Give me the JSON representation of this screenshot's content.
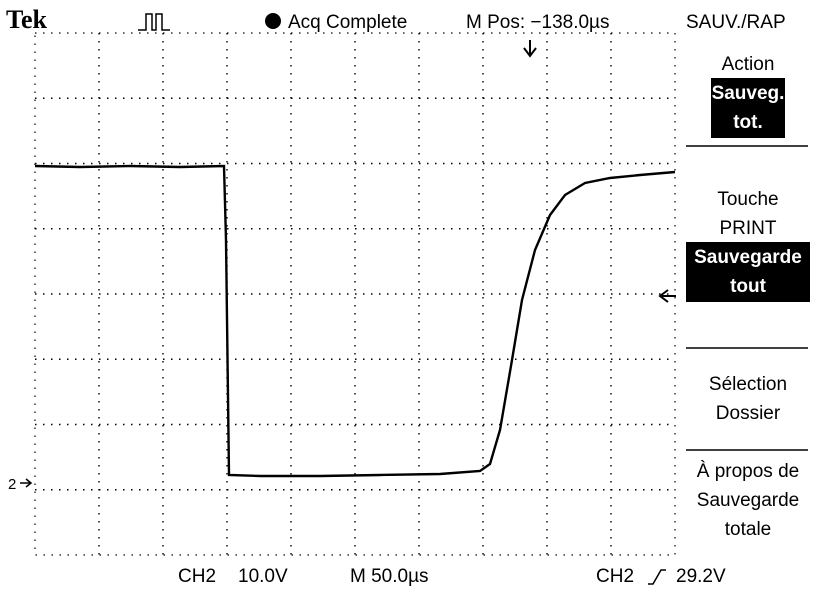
{
  "header": {
    "brand": "Tek",
    "status": "Acq Complete",
    "position": "M Pos: −138.0µs",
    "menu_title": "SAUV./RAP"
  },
  "menu": [
    {
      "label": [
        "Action"
      ],
      "selected": [
        "Sauveg.",
        "tot."
      ]
    },
    {
      "label": [
        "Touche",
        "PRINT"
      ],
      "selected": [
        "Sauvegarde",
        "tout"
      ]
    },
    {
      "label": [
        "Sélection",
        "Dossier"
      ]
    },
    {
      "label": [
        "À propos de",
        "Sauvegarde",
        "totale"
      ]
    }
  ],
  "footer": {
    "channel": "CH2",
    "volts": "10.0V",
    "timebase": "M 50.0µs",
    "trigger_channel": "CH2",
    "trigger_level": "29.2V"
  },
  "channel_marker": "2"
}
